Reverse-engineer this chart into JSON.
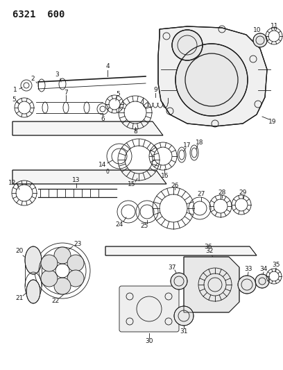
{
  "title": "6321  600",
  "bg_color": "#ffffff",
  "line_color": "#1a1a1a",
  "title_fontsize": 10,
  "label_fontsize": 6.5,
  "fig_w": 4.08,
  "fig_h": 5.33,
  "dpi": 100
}
